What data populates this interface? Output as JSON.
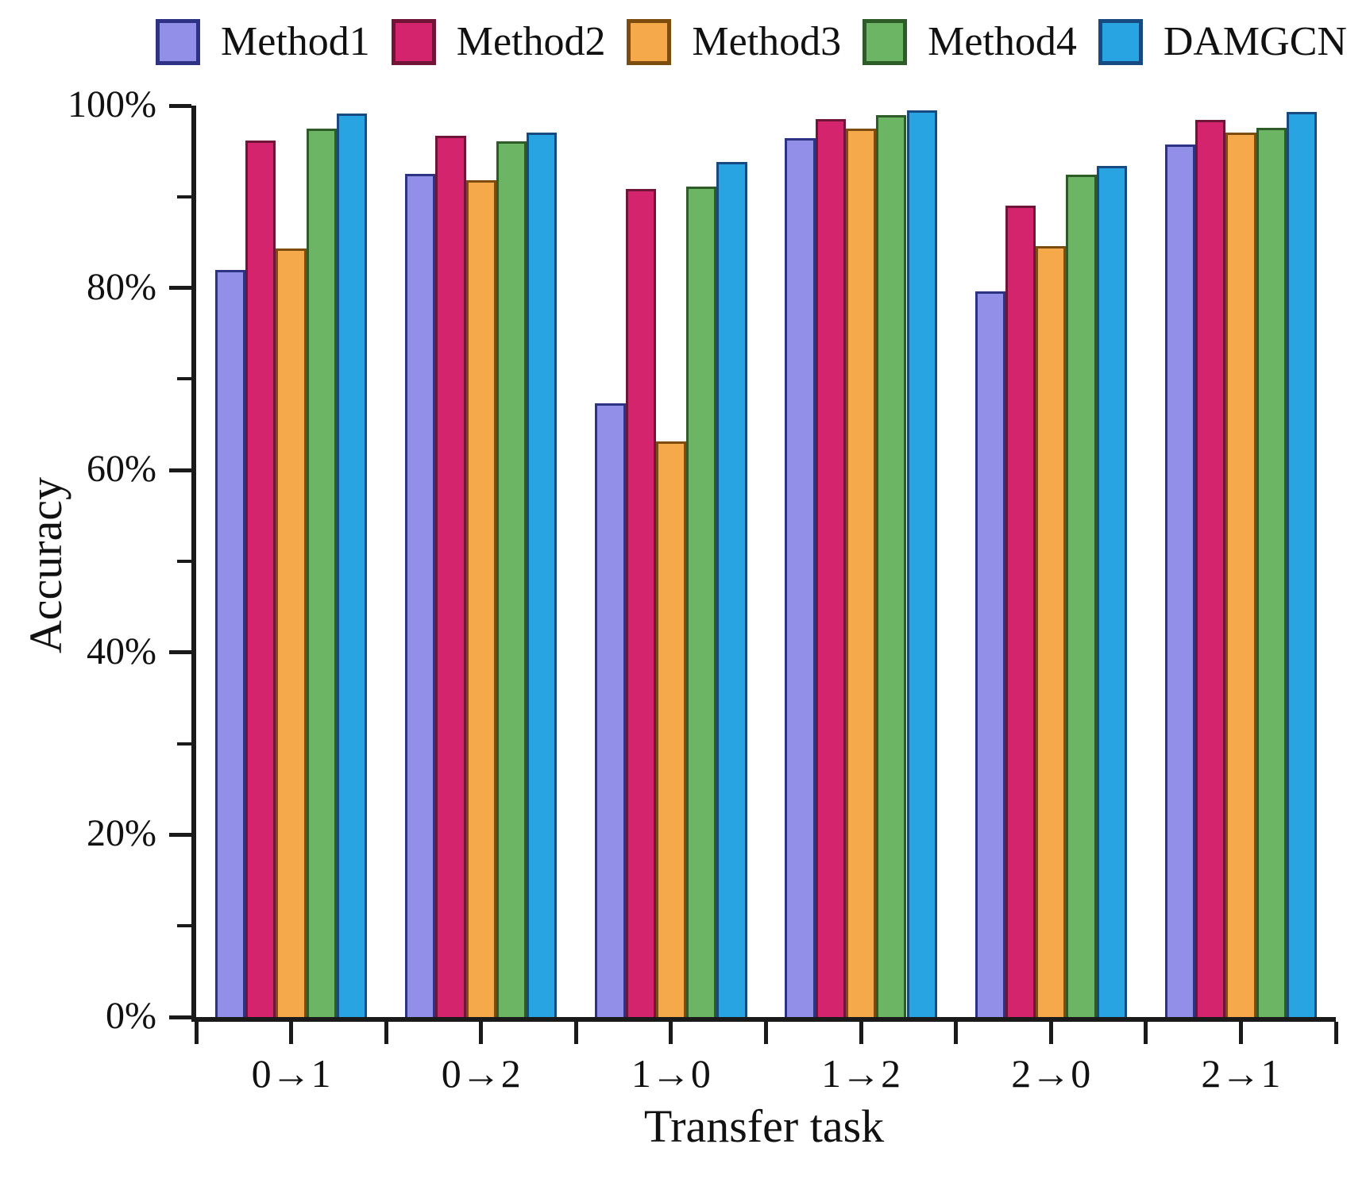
{
  "chart_data": {
    "type": "bar",
    "title": "",
    "xlabel": "Transfer task",
    "ylabel": "Accuracy",
    "categories": [
      "0→1",
      "0→2",
      "1→0",
      "1→2",
      "2→0",
      "2→1"
    ],
    "series": [
      {
        "name": "Method1",
        "color": "#918FE8",
        "edge_color": "#2E3282",
        "values": [
          82.0,
          92.5,
          67.3,
          96.4,
          79.6,
          95.7
        ]
      },
      {
        "name": "Method2",
        "color": "#D5246E",
        "edge_color": "#701537",
        "values": [
          96.2,
          96.7,
          90.9,
          98.5,
          89.0,
          98.4
        ]
      },
      {
        "name": "Method3",
        "color": "#F6A94B",
        "edge_color": "#7D4D10",
        "values": [
          84.3,
          91.8,
          63.2,
          97.5,
          84.6,
          97.0
        ]
      },
      {
        "name": "Method4",
        "color": "#6BB564",
        "edge_color": "#2D5C28",
        "values": [
          97.5,
          96.1,
          91.1,
          99.0,
          92.4,
          97.6
        ]
      },
      {
        "name": "DAMGCN",
        "color": "#28A4E2",
        "edge_color": "#164A80",
        "values": [
          99.1,
          97.0,
          93.8,
          99.5,
          93.4,
          99.3
        ]
      }
    ],
    "ylim": [
      0,
      100
    ],
    "yticks": [
      0,
      20,
      40,
      60,
      80,
      100
    ],
    "ytick_labels": [
      "0%",
      "20%",
      "40%",
      "60%",
      "80%",
      "100%"
    ],
    "minor_yticks": [
      10,
      30,
      50,
      70,
      90
    ],
    "grid": "off",
    "legend_position": "top",
    "axis_color": "#1A1A1A",
    "bar_group_width_fraction": 0.8
  }
}
